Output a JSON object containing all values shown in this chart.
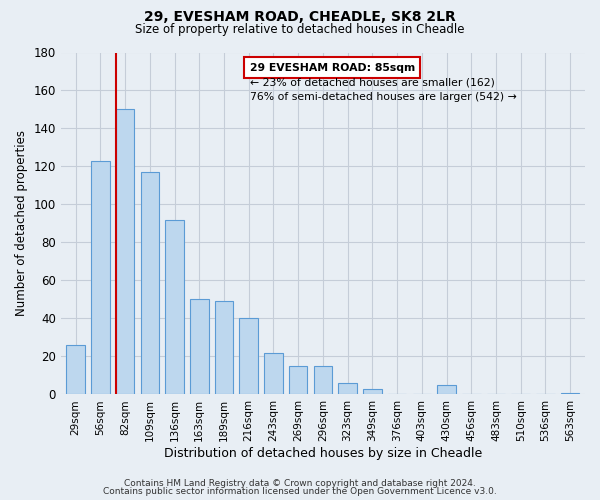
{
  "title": "29, EVESHAM ROAD, CHEADLE, SK8 2LR",
  "subtitle": "Size of property relative to detached houses in Cheadle",
  "xlabel": "Distribution of detached houses by size in Cheadle",
  "ylabel": "Number of detached properties",
  "categories": [
    "29sqm",
    "56sqm",
    "82sqm",
    "109sqm",
    "136sqm",
    "163sqm",
    "189sqm",
    "216sqm",
    "243sqm",
    "269sqm",
    "296sqm",
    "323sqm",
    "349sqm",
    "376sqm",
    "403sqm",
    "430sqm",
    "456sqm",
    "483sqm",
    "510sqm",
    "536sqm",
    "563sqm"
  ],
  "values": [
    26,
    123,
    150,
    117,
    92,
    50,
    49,
    40,
    22,
    15,
    15,
    6,
    3,
    0,
    0,
    5,
    0,
    0,
    0,
    0,
    1
  ],
  "bar_color": "#bdd7ee",
  "bar_edge_color": "#5b9bd5",
  "ylim": [
    0,
    180
  ],
  "yticks": [
    0,
    20,
    40,
    60,
    80,
    100,
    120,
    140,
    160,
    180
  ],
  "red_line_x": 2,
  "annotation_title": "29 EVESHAM ROAD: 85sqm",
  "annotation_line1": "← 23% of detached houses are smaller (162)",
  "annotation_line2": "76% of semi-detached houses are larger (542) →",
  "annotation_box_color": "#ffffff",
  "annotation_box_edge": "#cc0000",
  "footer_line1": "Contains HM Land Registry data © Crown copyright and database right 2024.",
  "footer_line2": "Contains public sector information licensed under the Open Government Licence v3.0.",
  "bg_color": "#e8eef4",
  "plot_bg_color": "#e8eef4",
  "grid_color": "#c5cdd8"
}
